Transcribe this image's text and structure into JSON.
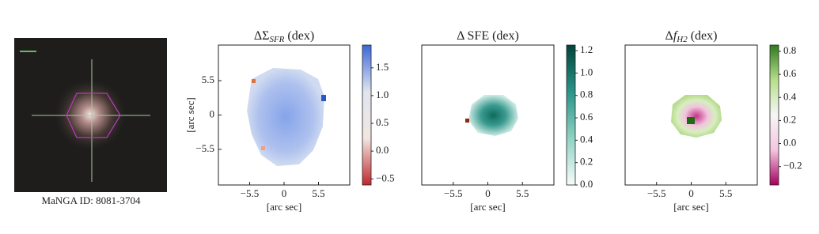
{
  "chart_data": [
    {
      "type": "image",
      "caption": "MaNGA ID: 8081-3704"
    },
    {
      "type": "map",
      "title": [
        "ΔΣ",
        "SFR",
        " (dex)"
      ],
      "xlabel": "[arc sec]",
      "ylabel": "[arc sec]",
      "xlim": [
        -10.5,
        10.5
      ],
      "ylim": [
        -11.2,
        11.2
      ],
      "xticks": [
        {
          "value": -5.5,
          "label": "−5.5"
        },
        0,
        5.5
      ],
      "yticks": [
        5.5,
        0,
        {
          "value": -5.5,
          "label": "−5.5"
        }
      ],
      "colorbar": {
        "lim": [
          -0.61,
          1.91
        ],
        "colors": [
          "#c0272d",
          "#f2e6e0",
          "#dfe5ef",
          "#3a66d8"
        ],
        "ticks": [
          {
            "value": -0.5,
            "label": "−0.5"
          },
          {
            "value": 0,
            "label": "0.0"
          },
          0.5,
          {
            "value": 1,
            "label": "1.0"
          },
          1.5
        ]
      }
    },
    {
      "type": "map",
      "title": [
        "Δ SFE (dex)"
      ],
      "xlabel": "[arc sec]",
      "xlim": [
        -10.5,
        10.5
      ],
      "ylim": [
        -11.2,
        11.2
      ],
      "xticks": [
        {
          "value": -5.5,
          "label": "−5.5"
        },
        0,
        5.5
      ],
      "colorbar": {
        "lim": [
          0,
          1.25
        ],
        "colors": [
          "#f7fcfb",
          "#8fd3c4",
          "#2a9488",
          "#00443a"
        ],
        "ticks": [
          {
            "value": 0,
            "label": "0.0"
          },
          0.2,
          0.4,
          0.6,
          0.8,
          {
            "value": 1,
            "label": "1.0"
          },
          1.2
        ]
      }
    },
    {
      "type": "map",
      "title": [
        "Δ",
        "f",
        "H2",
        " (dex)"
      ],
      "xlabel": "[arc sec]",
      "xlim": [
        -10.5,
        10.5
      ],
      "ylim": [
        -11.2,
        11.2
      ],
      "xticks": [
        {
          "value": -5.5,
          "label": "−5.5"
        },
        0,
        5.5
      ],
      "colorbar": {
        "lim": [
          -0.36,
          0.855
        ],
        "colors": [
          "#a5005f",
          "#f4c6e0",
          "#f6f6f6",
          "#b7df8a",
          "#2f7a1f"
        ],
        "ticks": [
          {
            "value": -0.2,
            "label": "−0.2"
          },
          {
            "value": 0,
            "label": "0.0"
          },
          0.2,
          0.4,
          0.6,
          0.8
        ]
      }
    }
  ]
}
